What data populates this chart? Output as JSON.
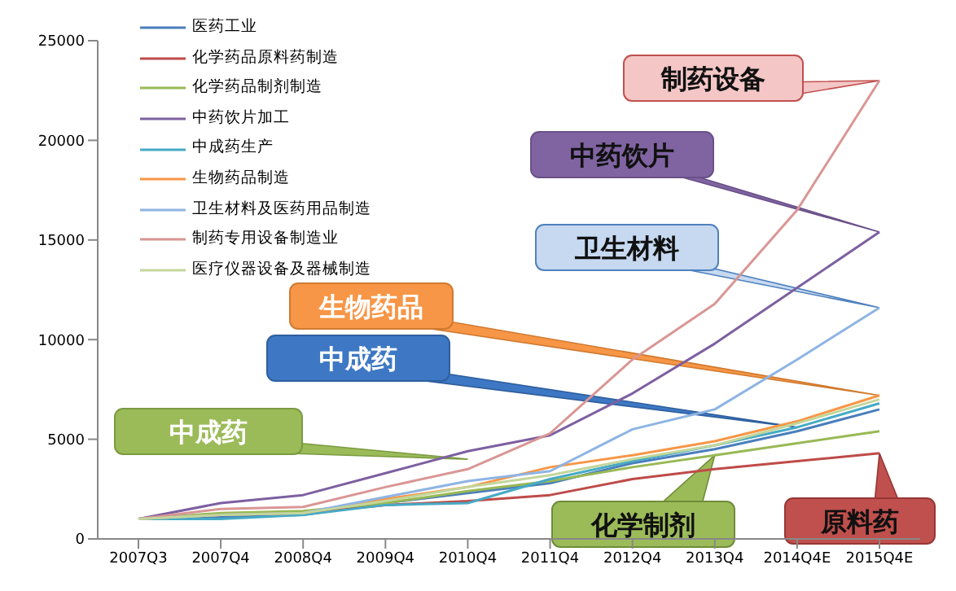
{
  "chart_data": {
    "type": "line",
    "categories": [
      "2007Q3",
      "2007Q4",
      "2008Q4",
      "2009Q4",
      "2010Q4",
      "2011Q4",
      "2012Q4",
      "2013Q4",
      "2014Q4E",
      "2015Q4E"
    ],
    "series": [
      {
        "name": "医药工业",
        "color": "#4a7ebb",
        "values": [
          1000,
          1100,
          1200,
          1800,
          2300,
          2800,
          3800,
          4500,
          5400,
          6500
        ]
      },
      {
        "name": "化学药品原料药制造",
        "color": "#be4b48",
        "values": [
          1000,
          1200,
          1300,
          1700,
          1900,
          2200,
          3000,
          3500,
          3900,
          4300
        ]
      },
      {
        "name": "化学药品制剂制造",
        "color": "#98b954",
        "values": [
          1000,
          1300,
          1400,
          1800,
          2400,
          2900,
          3600,
          4200,
          4800,
          5400
        ]
      },
      {
        "name": "中药饮片加工",
        "color": "#7d60a0",
        "values": [
          1000,
          1800,
          2200,
          3300,
          4400,
          5200,
          7300,
          9800,
          12600,
          15400
        ]
      },
      {
        "name": "中成药生产",
        "color": "#46aac5",
        "values": [
          1000,
          1000,
          1200,
          1700,
          1800,
          3000,
          3900,
          4700,
          5600,
          6800
        ]
      },
      {
        "name": "生物药品制造",
        "color": "#f79646",
        "values": [
          1000,
          1200,
          1300,
          2000,
          2600,
          3600,
          4200,
          4900,
          5900,
          7200
        ]
      },
      {
        "name": "卫生材料及医药用品制造",
        "color": "#8eb4e3",
        "values": [
          1000,
          1200,
          1300,
          2100,
          2900,
          3400,
          5500,
          6500,
          9000,
          11600
        ]
      },
      {
        "name": "制药专用设备制造业",
        "color": "#d99694",
        "values": [
          1000,
          1500,
          1600,
          2600,
          3500,
          5300,
          9000,
          11800,
          16500,
          23000
        ]
      },
      {
        "name": "医疗仪器设备及器械制造",
        "color": "#c3d69b",
        "values": [
          1000,
          1200,
          1300,
          1900,
          2600,
          3200,
          4000,
          4700,
          5800,
          7000
        ]
      }
    ],
    "ylim": [
      0,
      25000
    ],
    "yticks": [
      0,
      5000,
      10000,
      15000,
      20000,
      25000
    ],
    "grid": false,
    "legend": "top left",
    "marker": "none",
    "line_style": "solid",
    "annotations": [
      {
        "text": "制药设备",
        "x": "2015Q4E",
        "y": 23000
      },
      {
        "text": "中药饮片",
        "x": "2015Q4E",
        "y": 15400
      },
      {
        "text": "卫生材料",
        "x": "2015Q4E",
        "y": 11600
      },
      {
        "text": "生物药品",
        "x": "2015Q4E",
        "y": 7200
      },
      {
        "text": "中成药",
        "x": "2014Q4E",
        "y": 5600
      },
      {
        "text": "中成药",
        "x": "2010Q4",
        "y": 4000
      },
      {
        "text": "化学制剂",
        "x": "2013Q4",
        "y": 4200
      },
      {
        "text": "原料药",
        "x": "2015Q4E",
        "y": 4300
      }
    ]
  }
}
